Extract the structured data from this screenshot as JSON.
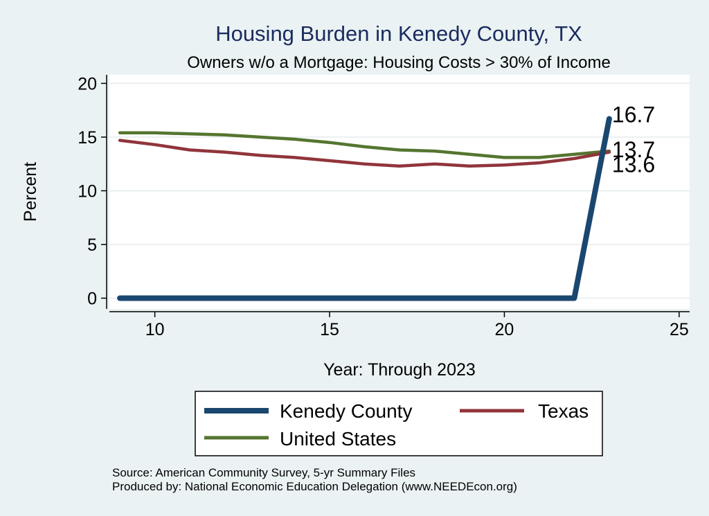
{
  "chart_data": {
    "type": "line",
    "title": "Housing Burden in Kenedy County, TX",
    "subtitle": "Owners w/o a Mortgage: Housing Costs > 30% of Income",
    "xlabel": "Year: Through 2023",
    "ylabel": "Percent",
    "xlim": [
      8.7,
      25.3
    ],
    "ylim": [
      -1.0,
      20.8
    ],
    "xticks": [
      10,
      15,
      20,
      25
    ],
    "yticks": [
      0,
      5,
      10,
      15,
      20
    ],
    "grid": true,
    "x": [
      9,
      10,
      11,
      12,
      13,
      14,
      15,
      16,
      17,
      18,
      19,
      20,
      21,
      22,
      23
    ],
    "series": [
      {
        "name": "Kenedy County",
        "color": "#1a476f",
        "values": [
          0,
          0,
          0,
          0,
          0,
          0,
          0,
          0,
          0,
          0,
          0,
          0,
          0,
          0,
          16.7
        ],
        "end_label": "16.7"
      },
      {
        "name": "Texas",
        "color": "#90353b",
        "values": [
          14.7,
          14.3,
          13.8,
          13.6,
          13.3,
          13.1,
          12.8,
          12.5,
          12.3,
          12.5,
          12.3,
          12.4,
          12.6,
          13.0,
          13.6
        ],
        "end_label": "13.6"
      },
      {
        "name": "United States",
        "color": "#55752f",
        "values": [
          15.4,
          15.4,
          15.3,
          15.2,
          15.0,
          14.8,
          14.5,
          14.1,
          13.8,
          13.7,
          13.4,
          13.1,
          13.1,
          13.4,
          13.7
        ],
        "end_label": "13.7"
      }
    ],
    "legend_position": "bottom"
  },
  "source_note": {
    "line1": "Source: American Community Survey, 5-yr Summary Files",
    "line2": "Produced by: National Economic Education Delegation (www.NEEDEcon.org)"
  }
}
